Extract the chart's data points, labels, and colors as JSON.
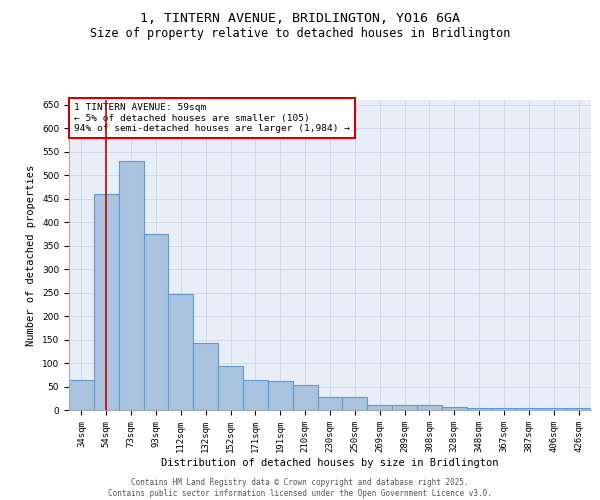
{
  "title1": "1, TINTERN AVENUE, BRIDLINGTON, YO16 6GA",
  "title2": "Size of property relative to detached houses in Bridlington",
  "xlabel": "Distribution of detached houses by size in Bridlington",
  "ylabel": "Number of detached properties",
  "categories": [
    "34sqm",
    "54sqm",
    "73sqm",
    "93sqm",
    "112sqm",
    "132sqm",
    "152sqm",
    "171sqm",
    "191sqm",
    "210sqm",
    "230sqm",
    "250sqm",
    "269sqm",
    "289sqm",
    "308sqm",
    "328sqm",
    "348sqm",
    "367sqm",
    "387sqm",
    "406sqm",
    "426sqm"
  ],
  "values": [
    63,
    460,
    530,
    375,
    248,
    143,
    94,
    63,
    62,
    54,
    27,
    27,
    10,
    10,
    10,
    7,
    5,
    4,
    5,
    5,
    5
  ],
  "bar_color": "#aac4e0",
  "bar_edge_color": "#5b9bd5",
  "bar_edge_width": 0.8,
  "vline_x": 1,
  "vline_color": "#cc0000",
  "annotation_text": "1 TINTERN AVENUE: 59sqm\n← 5% of detached houses are smaller (105)\n94% of semi-detached houses are larger (1,984) →",
  "annotation_box_color": "#ffffff",
  "annotation_box_edge_color": "#cc0000",
  "ylim": [
    0,
    660
  ],
  "yticks": [
    0,
    50,
    100,
    150,
    200,
    250,
    300,
    350,
    400,
    450,
    500,
    550,
    600,
    650
  ],
  "grid_color": "#d0d8e8",
  "background_color": "#e8eef8",
  "footer": "Contains HM Land Registry data © Crown copyright and database right 2025.\nContains public sector information licensed under the Open Government Licence v3.0.",
  "title1_fontsize": 9.5,
  "title2_fontsize": 8.5,
  "xlabel_fontsize": 7.5,
  "ylabel_fontsize": 7.5,
  "tick_fontsize": 6.5,
  "annotation_fontsize": 6.8,
  "footer_fontsize": 5.5
}
